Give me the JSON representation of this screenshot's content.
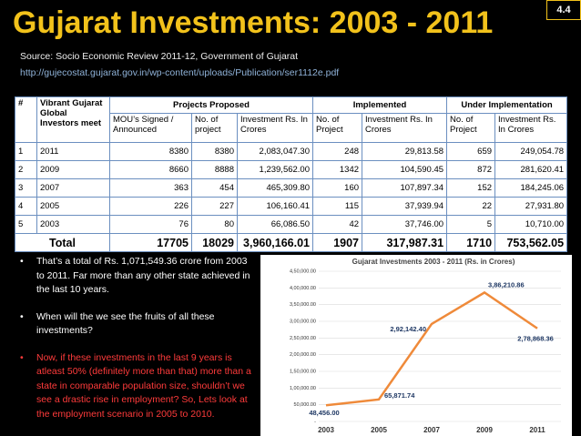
{
  "slide_number": "4.4",
  "title": "Gujarat Investments: 2003 - 2011",
  "source": "Source: Socio Economic Review 2011-12, Government of Gujarat",
  "url": "http://gujecostat.gujarat.gov.in/wp-content/uploads/Publication/ser1112e.pdf",
  "table": {
    "group_headers": [
      "#",
      "Vibrant Gujarat Global Investors meet",
      "Projects Proposed",
      "Implemented",
      "Under Implementation"
    ],
    "sub_headers": [
      "MOU’s Signed / Announced",
      "No. of project",
      "Investment Rs. In Crores",
      "No. of Project",
      "Investment Rs. In Crores",
      "No. of Project",
      "Investment Rs. In Crores"
    ],
    "rows": [
      [
        "1",
        "2011",
        "8380",
        "8380",
        "2,083,047.30",
        "248",
        "29,813.58",
        "659",
        "249,054.78"
      ],
      [
        "2",
        "2009",
        "8660",
        "8888",
        "1,239,562.00",
        "1342",
        "104,590.45",
        "872",
        "281,620.41"
      ],
      [
        "3",
        "2007",
        "363",
        "454",
        "465,309.80",
        "160",
        "107,897.34",
        "152",
        "184,245.06"
      ],
      [
        "4",
        "2005",
        "226",
        "227",
        "106,160.41",
        "115",
        "37,939.94",
        "22",
        "27,931.80"
      ],
      [
        "5",
        "2003",
        "76",
        "80",
        "66,086.50",
        "42",
        "37,746.00",
        "5",
        "10,710.00"
      ]
    ],
    "total": [
      "Total",
      "17705",
      "18029",
      "3,960,166.01",
      "1907",
      "317,987.31",
      "1710",
      "753,562.05"
    ]
  },
  "bullets": [
    "That’s a total of Rs. 1,071,549.36 crore from 2003 to 2011. Far more than any other state achieved in the last 10 years.",
    "When will the we see the fruits of all these investments?",
    "Now, if these investments in the last 9 years is atleast 50% (definitely more than that) more than a state in comparable population size, shouldn’t we see a drastic rise in employment? So, Lets look at the employment scenario in 2005 to 2010."
  ],
  "chart": {
    "type": "line",
    "title": "Gujarat Investments 2003 - 2011 (Rs. in Crores)",
    "categories": [
      "2003",
      "2005",
      "2007",
      "2009",
      "2011"
    ],
    "values": [
      48456.0,
      65871.74,
      292142.4,
      386210.86,
      278868.36
    ],
    "value_labels": [
      "48,456.00",
      "65,871.74",
      "2,92,142.40",
      "3,86,210.86",
      "2,78,868.36"
    ],
    "color": "#ef8a3a",
    "ylim": [
      0,
      450000
    ],
    "yticks": [
      {
        "value": 0,
        "label": "-"
      },
      {
        "value": 50000,
        "label": "50,000.00"
      },
      {
        "value": 100000,
        "label": "1,00,000.00"
      },
      {
        "value": 150000,
        "label": "1,50,000.00"
      },
      {
        "value": 200000,
        "label": "2,00,000.00"
      },
      {
        "value": 250000,
        "label": "2,50,000.00"
      },
      {
        "value": 300000,
        "label": "3,00,000.00"
      },
      {
        "value": 350000,
        "label": "3,50,000.00"
      },
      {
        "value": 400000,
        "label": "4,00,000.00"
      },
      {
        "value": 450000,
        "label": "4,50,000.00"
      }
    ],
    "grid": true
  }
}
